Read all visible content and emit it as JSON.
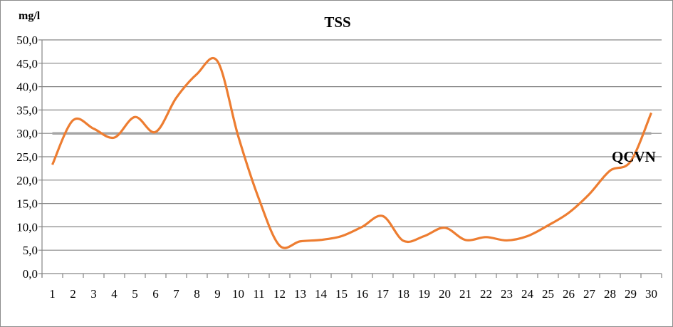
{
  "chart_data": {
    "type": "line",
    "title": "TSS",
    "ylabel": "mg/l",
    "xlabel": "",
    "ylim": [
      0,
      50
    ],
    "y_ticks": [
      "0,0",
      "5,0",
      "10,0",
      "15,0",
      "20,0",
      "25,0",
      "30,0",
      "35,0",
      "40,0",
      "45,0",
      "50,0"
    ],
    "categories": [
      "1",
      "2",
      "3",
      "4",
      "5",
      "6",
      "7",
      "8",
      "9",
      "10",
      "11",
      "12",
      "13",
      "14",
      "15",
      "16",
      "17",
      "18",
      "19",
      "20",
      "21",
      "22",
      "23",
      "24",
      "25",
      "26",
      "27",
      "28",
      "29",
      "30"
    ],
    "grid": true,
    "series": [
      {
        "name": "TSS",
        "color": "#ed7d31",
        "smooth": true,
        "values": [
          23.3,
          32.8,
          31.0,
          29.1,
          33.5,
          30.3,
          37.6,
          42.7,
          45.4,
          29.4,
          16.0,
          6.0,
          6.9,
          7.2,
          8.0,
          10.0,
          12.3,
          7.0,
          8.0,
          9.8,
          7.2,
          7.8,
          7.1,
          8.0,
          10.3,
          13.0,
          17.0,
          22.0,
          24.0,
          34.4
        ]
      },
      {
        "name": "QCVN",
        "color": "#a6a6a6",
        "constant": 30
      }
    ],
    "annotations": [
      "QCVN"
    ]
  }
}
